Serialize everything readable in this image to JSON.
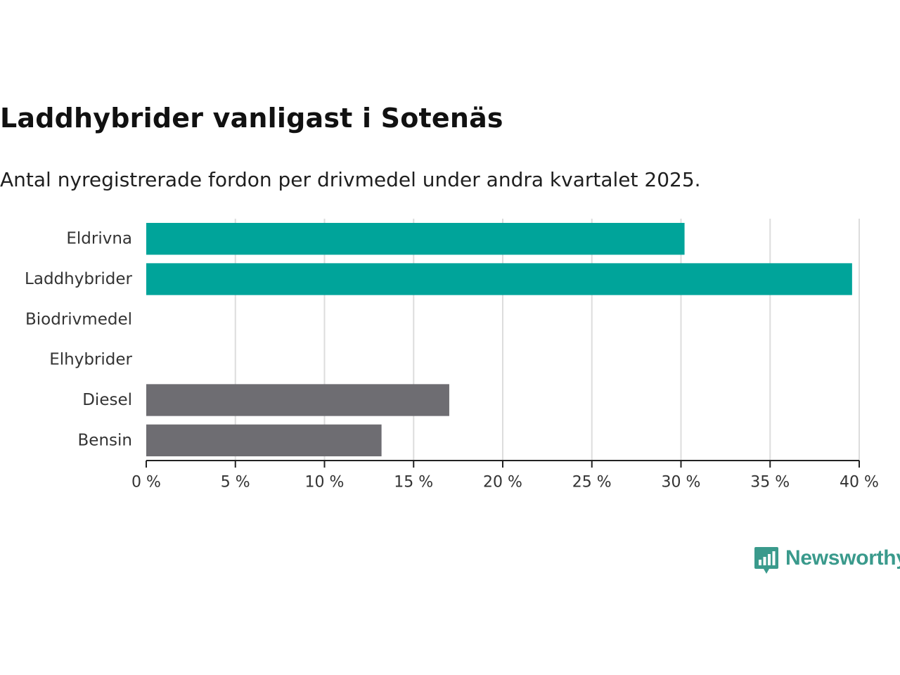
{
  "title": "Laddhybrider vanligast i Sotenäs",
  "subtitle": "Antal nyregistrerade fordon per drivmedel under andra kvartalet 2025.",
  "brand": {
    "name": "Newsworthy",
    "color": "#3a9a8c",
    "icon": "bar-chart-speech-bubble-icon"
  },
  "colors": {
    "highlight": "#00a49a",
    "neutral": "#6e6d72",
    "grid": "#dddddd",
    "axis": "#222222"
  },
  "chart_data": {
    "type": "bar",
    "orientation": "horizontal",
    "categories": [
      "Eldrivna",
      "Laddhybrider",
      "Biodrivmedel",
      "Elhybrider",
      "Diesel",
      "Bensin"
    ],
    "values": [
      30.2,
      39.6,
      0,
      0,
      17.0,
      13.2
    ],
    "bar_groups": [
      "highlight",
      "highlight",
      "highlight",
      "highlight",
      "neutral",
      "neutral"
    ],
    "unit": "%",
    "xlim": [
      0,
      40
    ],
    "xticks": [
      0,
      5,
      10,
      15,
      20,
      25,
      30,
      35,
      40
    ],
    "xtick_labels": [
      "0 %",
      "5 %",
      "10 %",
      "15 %",
      "20 %",
      "25 %",
      "30 %",
      "35 %",
      "40 %"
    ],
    "grid": "vertical",
    "legend": "none",
    "xlabel": "",
    "ylabel": ""
  }
}
